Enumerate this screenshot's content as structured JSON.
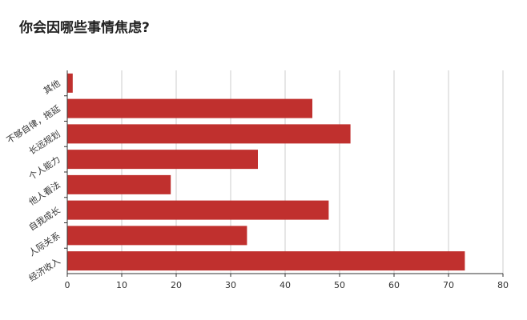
{
  "chart_data": {
    "type": "bar",
    "orientation": "horizontal",
    "title": "你会因哪些事情焦虑?",
    "categories": [
      "其他",
      "不够自律，拖延",
      "长远规划",
      "个人能力",
      "他人看法",
      "自我成长",
      "人际关系",
      "经济收入"
    ],
    "values": [
      1,
      45,
      52,
      35,
      19,
      48,
      33,
      73
    ],
    "xlim": [
      0,
      80
    ],
    "xticks": [
      "0",
      "10",
      "20",
      "30",
      "40",
      "50",
      "60",
      "70",
      "80"
    ],
    "grid": true,
    "legend": "none",
    "bar_color": "#c0302e",
    "grid_color": "#cccccc",
    "axis_color": "#333333"
  }
}
